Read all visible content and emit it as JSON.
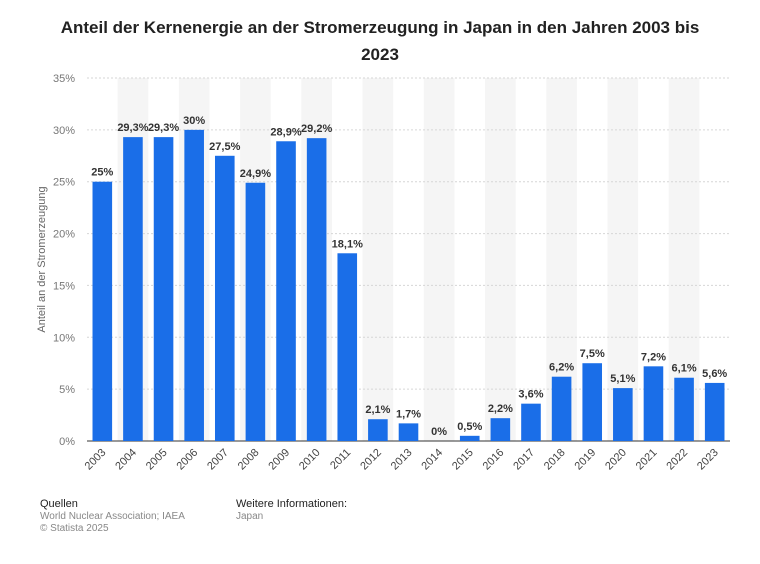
{
  "chart_data": {
    "type": "bar",
    "title": "Anteil der Kernenergie an der Stromerzeugung in Japan in den Jahren 2003 bis 2023",
    "ylabel": "Anteil an der Stromerzeugung",
    "xlabel": "",
    "ylim": [
      0,
      35
    ],
    "yticks": [
      0,
      5,
      10,
      15,
      20,
      25,
      30,
      35
    ],
    "ytick_labels": [
      "0%",
      "5%",
      "10%",
      "15%",
      "20%",
      "25%",
      "30%",
      "35%"
    ],
    "categories": [
      "2003",
      "2004",
      "2005",
      "2006",
      "2007",
      "2008",
      "2009",
      "2010",
      "2011",
      "2012",
      "2013",
      "2014",
      "2015",
      "2016",
      "2017",
      "2018",
      "2019",
      "2020",
      "2021",
      "2022",
      "2023"
    ],
    "values": [
      25,
      29.3,
      29.3,
      30,
      27.5,
      24.9,
      28.9,
      29.2,
      18.1,
      2.1,
      1.7,
      0,
      0.5,
      2.2,
      3.6,
      6.2,
      7.5,
      5.1,
      7.2,
      6.1,
      5.6
    ],
    "value_labels": [
      "25%",
      "29,3%",
      "29,3%",
      "30%",
      "27,5%",
      "24,9%",
      "28,9%",
      "29,2%",
      "18,1%",
      "2,1%",
      "1,7%",
      "0%",
      "0,5%",
      "2,2%",
      "3,6%",
      "6,2%",
      "7,5%",
      "5,1%",
      "7,2%",
      "6,1%",
      "5,6%"
    ],
    "bar_color": "#1a6ee8",
    "grid": true,
    "legend": "none"
  },
  "footer": {
    "sources_heading": "Quellen",
    "sources_line": "World Nuclear Association; IAEA",
    "copyright": "© Statista 2025",
    "more_heading": "Weitere Informationen:",
    "more_line": "Japan"
  }
}
